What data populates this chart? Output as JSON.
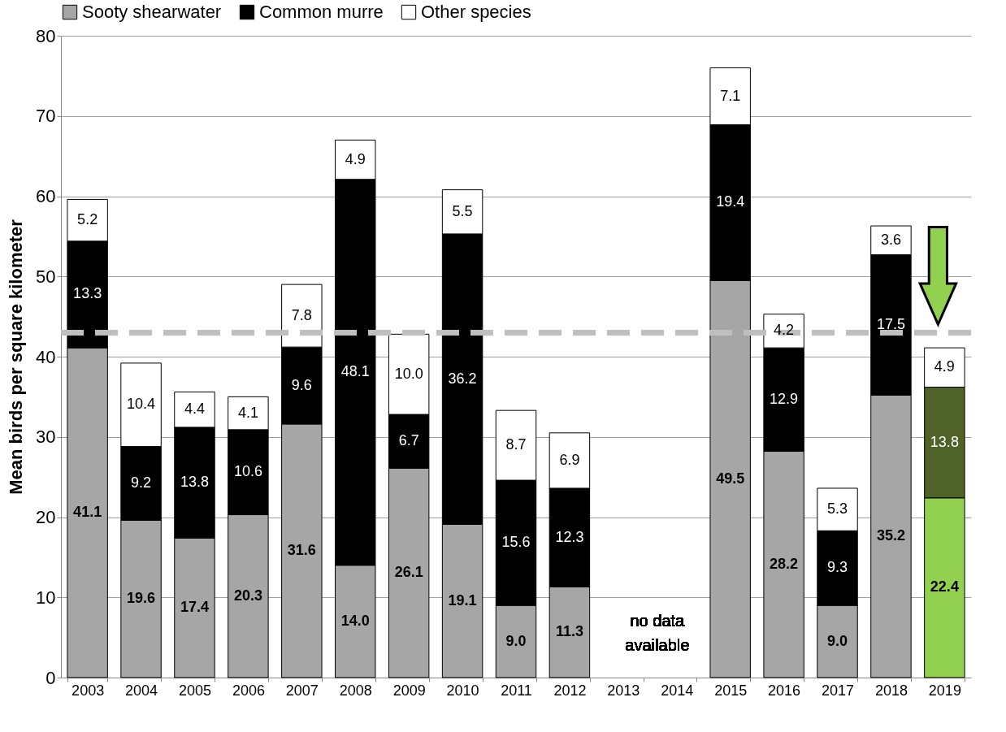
{
  "chart_data": {
    "type": "bar",
    "stacked": true,
    "ylabel": "Mean birds per square kilometer",
    "categories": [
      "2003",
      "2004",
      "2005",
      "2006",
      "2007",
      "2008",
      "2009",
      "2010",
      "2011",
      "2012",
      "2013",
      "2014",
      "2015",
      "2016",
      "2017",
      "2018",
      "2019"
    ],
    "series": [
      {
        "name": "Sooty shearwater",
        "color": "#a6a6a6",
        "colors": [
          "#a6a6a6",
          "#a6a6a6",
          "#a6a6a6",
          "#a6a6a6",
          "#a6a6a6",
          "#a6a6a6",
          "#a6a6a6",
          "#a6a6a6",
          "#a6a6a6",
          "#a6a6a6",
          null,
          null,
          "#a6a6a6",
          "#a6a6a6",
          "#a6a6a6",
          "#a6a6a6",
          "#92d050"
        ],
        "values": [
          41.1,
          19.6,
          17.4,
          20.3,
          31.6,
          14.0,
          26.1,
          19.1,
          9.0,
          11.3,
          null,
          null,
          49.5,
          28.2,
          9.0,
          35.2,
          22.4
        ],
        "value_labels": [
          "41.1",
          "19.6",
          "17.4",
          "20.3",
          "31.6",
          "14.0",
          "26.1",
          "19.1",
          "9.0",
          "11.3",
          null,
          null,
          "49.5",
          "28.2",
          "9.0",
          "35.2",
          "22.4"
        ]
      },
      {
        "name": "Common murre",
        "color": "#000000",
        "colors": [
          "#000000",
          "#000000",
          "#000000",
          "#000000",
          "#000000",
          "#000000",
          "#000000",
          "#000000",
          "#000000",
          "#000000",
          null,
          null,
          "#000000",
          "#000000",
          "#000000",
          "#000000",
          "#4f6228"
        ],
        "values": [
          13.3,
          9.2,
          13.8,
          10.6,
          9.6,
          48.1,
          6.7,
          36.2,
          15.6,
          12.3,
          null,
          null,
          19.4,
          12.9,
          9.3,
          17.5,
          13.8
        ],
        "value_labels": [
          "13.3",
          "9.2",
          "13.8",
          "10.6",
          "9.6",
          "48.1",
          "6.7",
          "36.2",
          "15.6",
          "12.3",
          null,
          null,
          "19.4",
          "12.9",
          "9.3",
          "17.5",
          "13.8"
        ]
      },
      {
        "name": "Other species",
        "color": "#ffffff",
        "values": [
          5.2,
          10.4,
          4.4,
          4.1,
          7.8,
          4.9,
          10.0,
          5.5,
          8.7,
          6.9,
          null,
          null,
          7.1,
          4.2,
          5.3,
          3.6,
          4.9
        ],
        "value_labels": [
          "5.2",
          "10.4",
          "4.4",
          "4.1",
          "7.8",
          "4.9",
          "10.0",
          "5.5",
          "8.7",
          "6.9",
          null,
          null,
          "7.1",
          "4.2",
          "5.3",
          "3.6",
          "4.9"
        ]
      }
    ],
    "ylim": [
      0,
      80
    ],
    "yticks": [
      0,
      10,
      20,
      30,
      40,
      50,
      60,
      70,
      80
    ],
    "grid": "y",
    "legend": "top",
    "ref_lines": [
      {
        "axis": "y",
        "value": 43,
        "color": "#bfbfbf",
        "line_style": "dashed"
      }
    ],
    "annotations": [
      "no data available"
    ]
  }
}
